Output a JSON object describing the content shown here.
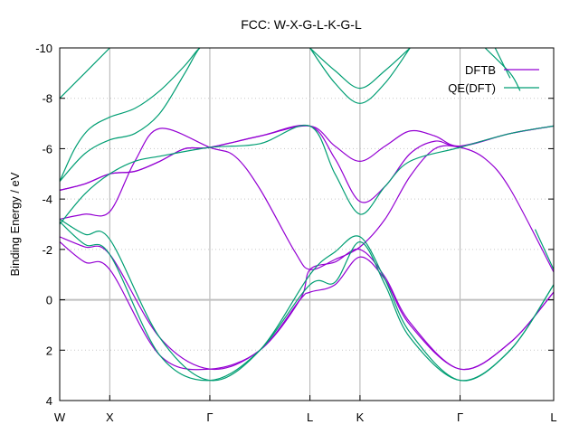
{
  "chart_data": {
    "type": "line",
    "title": "FCC: W-X-G-L-K-G-L",
    "xlabel": "",
    "ylabel": "Binding Energy / eV",
    "ylim": [
      4,
      -10
    ],
    "yticks": [
      -10,
      -8,
      -6,
      -4,
      -2,
      0,
      2,
      4
    ],
    "ytick_labels": [
      "-10",
      "-8",
      "-6",
      "-4",
      "-2",
      "0",
      "2",
      "4"
    ],
    "xlim": [
      0,
      9.87
    ],
    "xticks": [
      0,
      1,
      3,
      5,
      6,
      8,
      9.87
    ],
    "xtick_labels": [
      "W",
      "X",
      "Γ",
      "L",
      "K",
      "Γ",
      "L"
    ],
    "vertical_grid": true,
    "horizontal_grid": "dotted",
    "zero_line": true,
    "legend_position": "top-right",
    "colors": {
      "DFTB": "#9400d3",
      "QE(DFT)": "#009e73",
      "zero_line": "#c0c0c0"
    },
    "series": [
      {
        "name": "DFTB",
        "bands": [
          [
            [
              0,
              -2.3
            ],
            [
              0.5,
              -1.5
            ],
            [
              1,
              -1.2
            ],
            [
              2,
              2.2
            ],
            [
              3,
              2.75
            ],
            [
              4,
              2.0
            ],
            [
              4.8,
              0.0
            ],
            [
              5,
              -0.3
            ],
            [
              5.5,
              -0.6
            ],
            [
              6,
              -1.7
            ],
            [
              6.5,
              -0.8
            ],
            [
              7,
              1.0
            ],
            [
              8,
              2.75
            ],
            [
              9,
              1.7
            ],
            [
              9.87,
              -0.3
            ]
          ],
          [
            [
              0,
              -2.5
            ],
            [
              0.5,
              -2.1
            ],
            [
              1,
              -1.8
            ],
            [
              2,
              1.5
            ],
            [
              3,
              2.75
            ],
            [
              4,
              2.0
            ],
            [
              4.8,
              0.0
            ],
            [
              5,
              -1.2
            ],
            [
              5.5,
              -1.5
            ],
            [
              6,
              -2.0
            ],
            [
              6.5,
              -0.9
            ],
            [
              7,
              0.9
            ],
            [
              8,
              2.75
            ],
            [
              9,
              1.7
            ],
            [
              9.87,
              -0.3
            ]
          ],
          [
            [
              0,
              -3.2
            ],
            [
              0.5,
              -3.4
            ],
            [
              1,
              -3.5
            ],
            [
              1.5,
              -5.5
            ],
            [
              2,
              -6.8
            ],
            [
              3,
              -6.05
            ],
            [
              3.5,
              -5.7
            ],
            [
              4,
              -4.4
            ],
            [
              4.7,
              -1.9
            ],
            [
              5,
              -1.2
            ],
            [
              5.5,
              -1.6
            ],
            [
              6,
              -2.1
            ],
            [
              6.5,
              -3.2
            ],
            [
              7,
              -4.9
            ],
            [
              7.5,
              -6.0
            ],
            [
              8,
              -6.05
            ],
            [
              8.5,
              -5.6
            ],
            [
              9,
              -4.4
            ],
            [
              9.87,
              -1.1
            ]
          ],
          [
            [
              0,
              -4.35
            ],
            [
              0.5,
              -4.6
            ],
            [
              1,
              -5.0
            ],
            [
              1.5,
              -5.1
            ],
            [
              2,
              -5.5
            ],
            [
              2.5,
              -6.0
            ],
            [
              3,
              -6.05
            ],
            [
              4,
              -6.5
            ],
            [
              5,
              -6.9
            ],
            [
              5.5,
              -5.6
            ],
            [
              6,
              -3.9
            ],
            [
              6.5,
              -4.5
            ],
            [
              7,
              -5.8
            ],
            [
              7.5,
              -6.3
            ],
            [
              8,
              -6.1
            ],
            [
              9,
              -6.6
            ],
            [
              9.87,
              -6.9
            ]
          ],
          [
            [
              0,
              -4.35
            ],
            [
              0.5,
              -4.6
            ],
            [
              1,
              -5.0
            ],
            [
              1.5,
              -5.1
            ],
            [
              2,
              -5.5
            ],
            [
              2.5,
              -6.0
            ],
            [
              3,
              -6.05
            ],
            [
              4,
              -6.5
            ],
            [
              5,
              -6.9
            ],
            [
              5.5,
              -6.1
            ],
            [
              6,
              -5.5
            ],
            [
              6.5,
              -6.1
            ],
            [
              7,
              -6.7
            ],
            [
              7.5,
              -6.5
            ],
            [
              8,
              -6.1
            ],
            [
              9,
              -6.6
            ],
            [
              9.87,
              -6.9
            ]
          ]
        ]
      },
      {
        "name": "QE(DFT)",
        "bands": [
          [
            [
              0,
              -3.1
            ],
            [
              0.5,
              -2.2
            ],
            [
              1,
              -1.8
            ],
            [
              2,
              2.2
            ],
            [
              3,
              3.2
            ],
            [
              4,
              2.0
            ],
            [
              5,
              -0.6
            ],
            [
              5.5,
              -0.7
            ],
            [
              6,
              -2.3
            ],
            [
              6.5,
              -0.6
            ],
            [
              7,
              1.5
            ],
            [
              8,
              3.2
            ],
            [
              9,
              2.0
            ],
            [
              9.87,
              -0.6
            ]
          ],
          [
            [
              0,
              -3.2
            ],
            [
              0.5,
              -2.6
            ],
            [
              1,
              -2.4
            ],
            [
              2,
              1.5
            ],
            [
              3,
              3.2
            ],
            [
              4,
              2.0
            ],
            [
              5,
              -1.0
            ],
            [
              5.5,
              -1.9
            ],
            [
              6,
              -2.5
            ],
            [
              6.5,
              -0.8
            ],
            [
              7,
              1.3
            ],
            [
              8,
              3.2
            ],
            [
              9,
              2.0
            ],
            [
              9.87,
              -0.6
            ]
          ],
          [
            [
              0,
              -3.0
            ],
            [
              0.5,
              -4.2
            ],
            [
              1,
              -5.0
            ],
            [
              1.5,
              -5.5
            ],
            [
              2,
              -5.7
            ],
            [
              3,
              -6.05
            ],
            [
              4,
              -6.2
            ],
            [
              5,
              -6.9
            ],
            [
              5.5,
              -5.0
            ],
            [
              6,
              -3.4
            ],
            [
              6.5,
              -4.5
            ],
            [
              7,
              -5.5
            ],
            [
              8,
              -6.05
            ],
            [
              9,
              -6.6
            ],
            [
              9.87,
              -6.9
            ]
          ],
          [
            [
              0,
              -4.7
            ],
            [
              0.5,
              -5.8
            ],
            [
              1,
              -6.35
            ],
            [
              1.5,
              -6.6
            ],
            [
              2,
              -7.4
            ],
            [
              2.5,
              -9.0
            ],
            [
              2.8,
              -10.0
            ],
            [
              3,
              -10.0
            ]
          ],
          [
            [
              0,
              -4.7
            ],
            [
              0.3,
              -6.0
            ],
            [
              0.6,
              -6.8
            ],
            [
              1,
              -7.25
            ],
            [
              1.5,
              -7.6
            ],
            [
              2,
              -8.3
            ],
            [
              2.5,
              -9.3
            ],
            [
              2.8,
              -10.0
            ],
            [
              3,
              -10.0
            ]
          ],
          [
            [
              0,
              -8.0
            ],
            [
              0.5,
              -9.0
            ],
            [
              1,
              -10.0
            ]
          ],
          [
            [
              5,
              -10.0
            ],
            [
              5.5,
              -8.6
            ],
            [
              6,
              -7.8
            ],
            [
              6.5,
              -8.6
            ],
            [
              7,
              -10.0
            ]
          ],
          [
            [
              5,
              -10.0
            ],
            [
              5.5,
              -9.1
            ],
            [
              6,
              -8.4
            ],
            [
              6.5,
              -9.1
            ],
            [
              7,
              -10.0
            ]
          ],
          [
            [
              8.5,
              -10.0
            ],
            [
              9,
              -9.0
            ],
            [
              9.2,
              -8.3
            ]
          ],
          [
            [
              8.7,
              -10.0
            ],
            [
              9,
              -8.8
            ]
          ],
          [
            [
              9.87,
              -1.2
            ],
            [
              9.5,
              -2.8
            ]
          ]
        ]
      }
    ]
  }
}
